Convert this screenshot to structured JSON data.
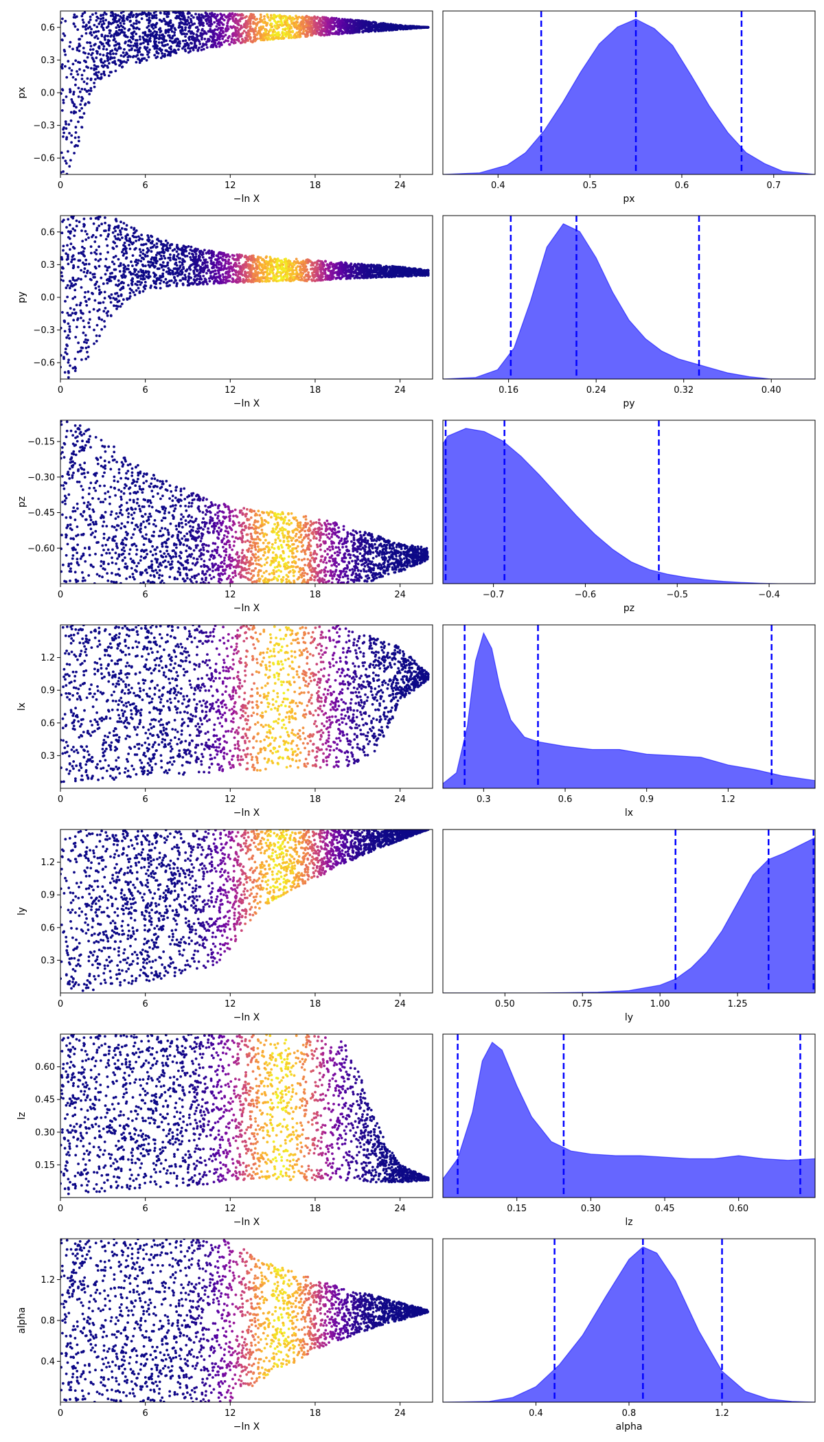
{
  "figure": {
    "type": "dynesty-traceplot",
    "background": "#ffffff"
  },
  "colors": {
    "density_fill": "#0000ff",
    "quantile_line": "#0000ff",
    "colormap": "plasma",
    "colormap_stops": [
      "#0d0887",
      "#5b02a3",
      "#9a179b",
      "#cb4678",
      "#eb7852",
      "#fbb32f",
      "#f0f921"
    ]
  },
  "icons": {
    "trace": "scatter-trace",
    "posterior": "density-curve"
  },
  "chart_data": [
    {
      "param": "px",
      "type": "scatter",
      "xlabel": "−ln X",
      "ylabel": "px",
      "xlim": [
        0,
        26.3
      ],
      "ylim": [
        -0.75,
        0.75
      ],
      "xticks": [
        0,
        6,
        12,
        18,
        24
      ],
      "xtick_labels": [
        "0",
        "6",
        "12",
        "18",
        "24"
      ],
      "yticks": [
        -0.6,
        -0.3,
        0.0,
        0.3,
        0.6
      ],
      "ytick_labels": [
        "−0.6",
        "−0.3",
        "0.0",
        "0.3",
        "0.6"
      ],
      "envelope": {
        "x": [
          0,
          0.5,
          1,
          2,
          3,
          4,
          5,
          6,
          8,
          10,
          12,
          14,
          16,
          18,
          20,
          22,
          24,
          26
        ],
        "lower": [
          -0.75,
          -0.75,
          -0.6,
          -0.1,
          0.12,
          0.2,
          0.25,
          0.29,
          0.34,
          0.39,
          0.44,
          0.47,
          0.5,
          0.52,
          0.54,
          0.56,
          0.58,
          0.6
        ],
        "upper": [
          0.75,
          0.75,
          0.75,
          0.75,
          0.75,
          0.75,
          0.75,
          0.75,
          0.75,
          0.74,
          0.73,
          0.72,
          0.71,
          0.7,
          0.68,
          0.65,
          0.62,
          0.6
        ]
      },
      "peak_x": 15.5,
      "xmax": 26
    },
    {
      "param": "px",
      "type": "area",
      "xlabel": "px",
      "ylabel": "",
      "xlim": [
        0.34,
        0.745
      ],
      "xticks": [
        0.4,
        0.5,
        0.6,
        0.7
      ],
      "xtick_labels": [
        "0.4",
        "0.5",
        "0.6",
        "0.7"
      ],
      "x": [
        0.34,
        0.38,
        0.41,
        0.43,
        0.45,
        0.47,
        0.49,
        0.51,
        0.53,
        0.55,
        0.57,
        0.59,
        0.61,
        0.63,
        0.65,
        0.67,
        0.69,
        0.71,
        0.745
      ],
      "density": [
        0,
        0.01,
        0.06,
        0.14,
        0.28,
        0.46,
        0.66,
        0.84,
        0.95,
        1.0,
        0.94,
        0.83,
        0.64,
        0.44,
        0.27,
        0.14,
        0.07,
        0.02,
        0
      ],
      "quantiles": [
        0.447,
        0.55,
        0.665
      ]
    },
    {
      "param": "py",
      "type": "scatter",
      "xlabel": "−ln X",
      "ylabel": "py",
      "xlim": [
        0,
        26.3
      ],
      "ylim": [
        -0.75,
        0.75
      ],
      "xticks": [
        0,
        6,
        12,
        18,
        24
      ],
      "xtick_labels": [
        "0",
        "6",
        "12",
        "18",
        "24"
      ],
      "yticks": [
        -0.6,
        -0.3,
        0.0,
        0.3,
        0.6
      ],
      "ytick_labels": [
        "−0.6",
        "−0.3",
        "0.0",
        "0.3",
        "0.6"
      ],
      "envelope": {
        "x": [
          0,
          1,
          2,
          3,
          4,
          5,
          6,
          8,
          10,
          12,
          14,
          16,
          18,
          20,
          22,
          24,
          26
        ],
        "lower": [
          -0.75,
          -0.75,
          -0.55,
          -0.3,
          -0.12,
          0.0,
          0.06,
          0.1,
          0.12,
          0.13,
          0.14,
          0.15,
          0.15,
          0.17,
          0.18,
          0.19,
          0.2
        ],
        "upper": [
          0.75,
          0.75,
          0.75,
          0.75,
          0.72,
          0.65,
          0.58,
          0.5,
          0.44,
          0.4,
          0.38,
          0.36,
          0.34,
          0.32,
          0.3,
          0.28,
          0.25
        ]
      },
      "peak_x": 15.5,
      "xmax": 26
    },
    {
      "param": "py",
      "type": "area",
      "xlabel": "py",
      "ylabel": "",
      "xlim": [
        0.1,
        0.44
      ],
      "xticks": [
        0.16,
        0.24,
        0.32,
        0.4
      ],
      "xtick_labels": [
        "0.16",
        "0.24",
        "0.32",
        "0.40"
      ],
      "x": [
        0.1,
        0.13,
        0.15,
        0.165,
        0.18,
        0.195,
        0.21,
        0.225,
        0.24,
        0.255,
        0.27,
        0.285,
        0.3,
        0.315,
        0.33,
        0.345,
        0.36,
        0.38,
        0.4,
        0.44
      ],
      "density": [
        0,
        0.01,
        0.06,
        0.2,
        0.5,
        0.85,
        1.0,
        0.95,
        0.78,
        0.56,
        0.38,
        0.26,
        0.18,
        0.13,
        0.1,
        0.07,
        0.04,
        0.015,
        0,
        0
      ],
      "quantiles": [
        0.162,
        0.222,
        0.334
      ]
    },
    {
      "param": "pz",
      "type": "scatter",
      "xlabel": "−ln X",
      "ylabel": "pz",
      "xlim": [
        0,
        26.3
      ],
      "ylim": [
        -0.75,
        -0.06
      ],
      "xticks": [
        0,
        6,
        12,
        18,
        24
      ],
      "xtick_labels": [
        "0",
        "6",
        "12",
        "18",
        "24"
      ],
      "yticks": [
        -0.6,
        -0.45,
        -0.3,
        -0.15
      ],
      "ytick_labels": [
        "−0.60",
        "−0.45",
        "−0.30",
        "−0.15"
      ],
      "envelope": {
        "x": [
          0,
          1,
          2,
          3,
          4,
          5,
          6,
          8,
          10,
          12,
          14,
          16,
          18,
          20,
          22,
          24,
          26
        ],
        "lower": [
          -0.75,
          -0.75,
          -0.75,
          -0.75,
          -0.75,
          -0.75,
          -0.75,
          -0.75,
          -0.75,
          -0.75,
          -0.75,
          -0.75,
          -0.75,
          -0.75,
          -0.74,
          -0.7,
          -0.65
        ],
        "upper": [
          -0.06,
          -0.06,
          -0.09,
          -0.14,
          -0.18,
          -0.23,
          -0.27,
          -0.33,
          -0.38,
          -0.42,
          -0.44,
          -0.45,
          -0.47,
          -0.5,
          -0.54,
          -0.58,
          -0.6
        ]
      },
      "peak_x": 15.5,
      "xmax": 26
    },
    {
      "param": "pz",
      "type": "area",
      "xlabel": "pz",
      "ylabel": "",
      "xlim": [
        -0.755,
        -0.35
      ],
      "xticks": [
        -0.7,
        -0.6,
        -0.5,
        -0.4
      ],
      "xtick_labels": [
        "−0.7",
        "−0.6",
        "−0.5",
        "−0.4"
      ],
      "x": [
        -0.755,
        -0.75,
        -0.73,
        -0.71,
        -0.69,
        -0.67,
        -0.65,
        -0.63,
        -0.61,
        -0.59,
        -0.57,
        -0.55,
        -0.53,
        -0.51,
        -0.49,
        -0.47,
        -0.45,
        -0.43,
        -0.41,
        -0.39,
        -0.35
      ],
      "density": [
        0.9,
        0.95,
        1.0,
        0.98,
        0.92,
        0.82,
        0.7,
        0.57,
        0.44,
        0.32,
        0.22,
        0.14,
        0.09,
        0.06,
        0.04,
        0.025,
        0.015,
        0.008,
        0.003,
        0,
        0
      ],
      "quantiles": [
        -0.752,
        -0.688,
        -0.52
      ]
    },
    {
      "param": "lx",
      "type": "scatter",
      "xlabel": "−ln X",
      "ylabel": "lx",
      "xlim": [
        0,
        26.3
      ],
      "ylim": [
        0.0,
        1.5
      ],
      "xticks": [
        0,
        6,
        12,
        18,
        24
      ],
      "xtick_labels": [
        "0",
        "6",
        "12",
        "18",
        "24"
      ],
      "yticks": [
        0.3,
        0.6,
        0.9,
        1.2
      ],
      "ytick_labels": [
        "0.3",
        "0.6",
        "0.9",
        "1.2"
      ],
      "envelope": {
        "x": [
          0,
          1,
          2,
          4,
          6,
          8,
          10,
          12,
          14,
          16,
          18,
          20,
          21,
          22,
          23,
          24,
          26
        ],
        "lower": [
          0.02,
          0.02,
          0.05,
          0.08,
          0.1,
          0.12,
          0.14,
          0.15,
          0.16,
          0.17,
          0.18,
          0.2,
          0.22,
          0.3,
          0.5,
          0.8,
          1.0
        ],
        "upper": [
          1.5,
          1.5,
          1.5,
          1.5,
          1.5,
          1.5,
          1.5,
          1.5,
          1.5,
          1.5,
          1.5,
          1.5,
          1.45,
          1.4,
          1.35,
          1.3,
          1.05
        ]
      },
      "peak_x": 15.5,
      "xmax": 26
    },
    {
      "param": "lx",
      "type": "area",
      "xlabel": "lx",
      "ylabel": "",
      "xlim": [
        0.15,
        1.52
      ],
      "xticks": [
        0.3,
        0.6,
        0.9,
        1.2
      ],
      "xtick_labels": [
        "0.3",
        "0.6",
        "0.9",
        "1.2"
      ],
      "x": [
        0.15,
        0.2,
        0.24,
        0.27,
        0.3,
        0.33,
        0.36,
        0.4,
        0.45,
        0.5,
        0.6,
        0.7,
        0.8,
        0.9,
        1.0,
        1.1,
        1.2,
        1.3,
        1.4,
        1.52
      ],
      "density": [
        0.03,
        0.1,
        0.4,
        0.82,
        1.0,
        0.9,
        0.65,
        0.44,
        0.33,
        0.3,
        0.27,
        0.25,
        0.25,
        0.22,
        0.21,
        0.2,
        0.15,
        0.12,
        0.08,
        0.05
      ],
      "quantiles": [
        0.23,
        0.5,
        1.36
      ]
    },
    {
      "param": "ly",
      "type": "scatter",
      "xlabel": "−ln X",
      "ylabel": "ly",
      "xlim": [
        0,
        26.3
      ],
      "ylim": [
        0.0,
        1.5
      ],
      "xticks": [
        0,
        6,
        12,
        18,
        24
      ],
      "xtick_labels": [
        "0",
        "6",
        "12",
        "18",
        "24"
      ],
      "yticks": [
        0.3,
        0.6,
        0.9,
        1.2
      ],
      "ytick_labels": [
        "0.3",
        "0.6",
        "0.9",
        "1.2"
      ],
      "envelope": {
        "x": [
          0,
          1,
          2,
          4,
          6,
          8,
          10,
          11.5,
          12,
          13,
          14,
          16,
          18,
          20,
          22,
          24,
          26
        ],
        "lower": [
          0.1,
          0.02,
          0.02,
          0.06,
          0.1,
          0.15,
          0.22,
          0.28,
          0.4,
          0.6,
          0.75,
          0.92,
          1.05,
          1.18,
          1.3,
          1.4,
          1.5
        ],
        "upper": [
          1.5,
          1.5,
          1.5,
          1.5,
          1.5,
          1.5,
          1.5,
          1.5,
          1.5,
          1.5,
          1.5,
          1.5,
          1.5,
          1.5,
          1.5,
          1.5,
          1.5
        ]
      },
      "peak_x": 15.5,
      "xmax": 26
    },
    {
      "param": "ly",
      "type": "area",
      "xlabel": "ly",
      "ylabel": "",
      "xlim": [
        0.3,
        1.5
      ],
      "xticks": [
        0.5,
        0.75,
        1.0,
        1.25
      ],
      "xtick_labels": [
        "0.50",
        "0.75",
        "1.00",
        "1.25"
      ],
      "x": [
        0.3,
        0.6,
        0.8,
        0.9,
        1.0,
        1.05,
        1.1,
        1.15,
        1.2,
        1.25,
        1.3,
        1.35,
        1.4,
        1.45,
        1.5
      ],
      "density": [
        0,
        0,
        0.005,
        0.015,
        0.05,
        0.09,
        0.16,
        0.26,
        0.4,
        0.58,
        0.76,
        0.86,
        0.9,
        0.95,
        1.0
      ],
      "quantiles": [
        1.05,
        1.35,
        1.495
      ]
    },
    {
      "param": "lz",
      "type": "scatter",
      "xlabel": "−ln X",
      "ylabel": "lz",
      "xlim": [
        0,
        26.3
      ],
      "ylim": [
        0.0,
        0.75
      ],
      "xticks": [
        0,
        6,
        12,
        18,
        24
      ],
      "xtick_labels": [
        "0",
        "6",
        "12",
        "18",
        "24"
      ],
      "yticks": [
        0.15,
        0.3,
        0.45,
        0.6
      ],
      "ytick_labels": [
        "0.15",
        "0.30",
        "0.45",
        "0.60"
      ],
      "envelope": {
        "x": [
          0,
          1,
          2,
          4,
          6,
          8,
          10,
          12,
          14,
          16,
          18,
          20,
          21,
          22,
          23,
          24,
          26
        ],
        "lower": [
          0.01,
          0.01,
          0.02,
          0.03,
          0.04,
          0.05,
          0.06,
          0.07,
          0.08,
          0.08,
          0.08,
          0.08,
          0.08,
          0.07,
          0.07,
          0.07,
          0.08
        ],
        "upper": [
          0.75,
          0.75,
          0.75,
          0.75,
          0.75,
          0.75,
          0.75,
          0.75,
          0.75,
          0.75,
          0.75,
          0.72,
          0.6,
          0.4,
          0.25,
          0.15,
          0.09
        ]
      },
      "peak_x": 15.5,
      "xmax": 26
    },
    {
      "param": "lz",
      "type": "area",
      "xlabel": "lz",
      "ylabel": "",
      "xlim": [
        0.0,
        0.755
      ],
      "xticks": [
        0.15,
        0.3,
        0.45,
        0.6
      ],
      "xtick_labels": [
        "0.15",
        "0.30",
        "0.45",
        "0.60"
      ],
      "x": [
        0.0,
        0.03,
        0.06,
        0.08,
        0.1,
        0.12,
        0.15,
        0.18,
        0.22,
        0.26,
        0.3,
        0.35,
        0.4,
        0.45,
        0.5,
        0.55,
        0.6,
        0.65,
        0.7,
        0.755
      ],
      "density": [
        0.12,
        0.25,
        0.55,
        0.88,
        1.0,
        0.95,
        0.72,
        0.52,
        0.36,
        0.3,
        0.28,
        0.27,
        0.27,
        0.26,
        0.25,
        0.25,
        0.27,
        0.25,
        0.24,
        0.25
      ],
      "quantiles": [
        0.03,
        0.245,
        0.725
      ]
    },
    {
      "param": "alpha",
      "type": "scatter",
      "xlabel": "−ln X",
      "ylabel": "alpha",
      "xlim": [
        0,
        26.3
      ],
      "ylim": [
        0.0,
        1.6
      ],
      "xticks": [
        0,
        6,
        12,
        18,
        24
      ],
      "xtick_labels": [
        "0",
        "6",
        "12",
        "18",
        "24"
      ],
      "yticks": [
        0.4,
        0.8,
        1.2
      ],
      "ytick_labels": [
        "0.4",
        "0.8",
        "1.2"
      ],
      "envelope": {
        "x": [
          0,
          2,
          4,
          6,
          8,
          10,
          12,
          13,
          14,
          16,
          18,
          20,
          22,
          24,
          25,
          26
        ],
        "lower": [
          0.0,
          0.0,
          0.0,
          0.0,
          0.0,
          0.0,
          0.0,
          0.05,
          0.2,
          0.35,
          0.5,
          0.62,
          0.72,
          0.8,
          0.84,
          0.88
        ],
        "upper": [
          1.6,
          1.6,
          1.6,
          1.6,
          1.6,
          1.6,
          1.6,
          1.5,
          1.4,
          1.3,
          1.2,
          1.12,
          1.05,
          0.98,
          0.94,
          0.9
        ]
      },
      "peak_x": 15.5,
      "xmax": 26
    },
    {
      "param": "alpha",
      "type": "area",
      "xlabel": "alpha",
      "ylabel": "",
      "xlim": [
        0.0,
        1.6
      ],
      "xticks": [
        0.4,
        0.8,
        1.2
      ],
      "xtick_labels": [
        "0.4",
        "0.8",
        "1.2"
      ],
      "x": [
        0.0,
        0.2,
        0.3,
        0.4,
        0.5,
        0.6,
        0.7,
        0.8,
        0.86,
        0.92,
        1.0,
        1.1,
        1.2,
        1.3,
        1.4,
        1.5,
        1.6
      ],
      "density": [
        0,
        0.005,
        0.03,
        0.1,
        0.24,
        0.43,
        0.68,
        0.92,
        1.0,
        0.96,
        0.78,
        0.46,
        0.2,
        0.07,
        0.02,
        0.005,
        0
      ],
      "quantiles": [
        0.48,
        0.86,
        1.2
      ]
    }
  ]
}
